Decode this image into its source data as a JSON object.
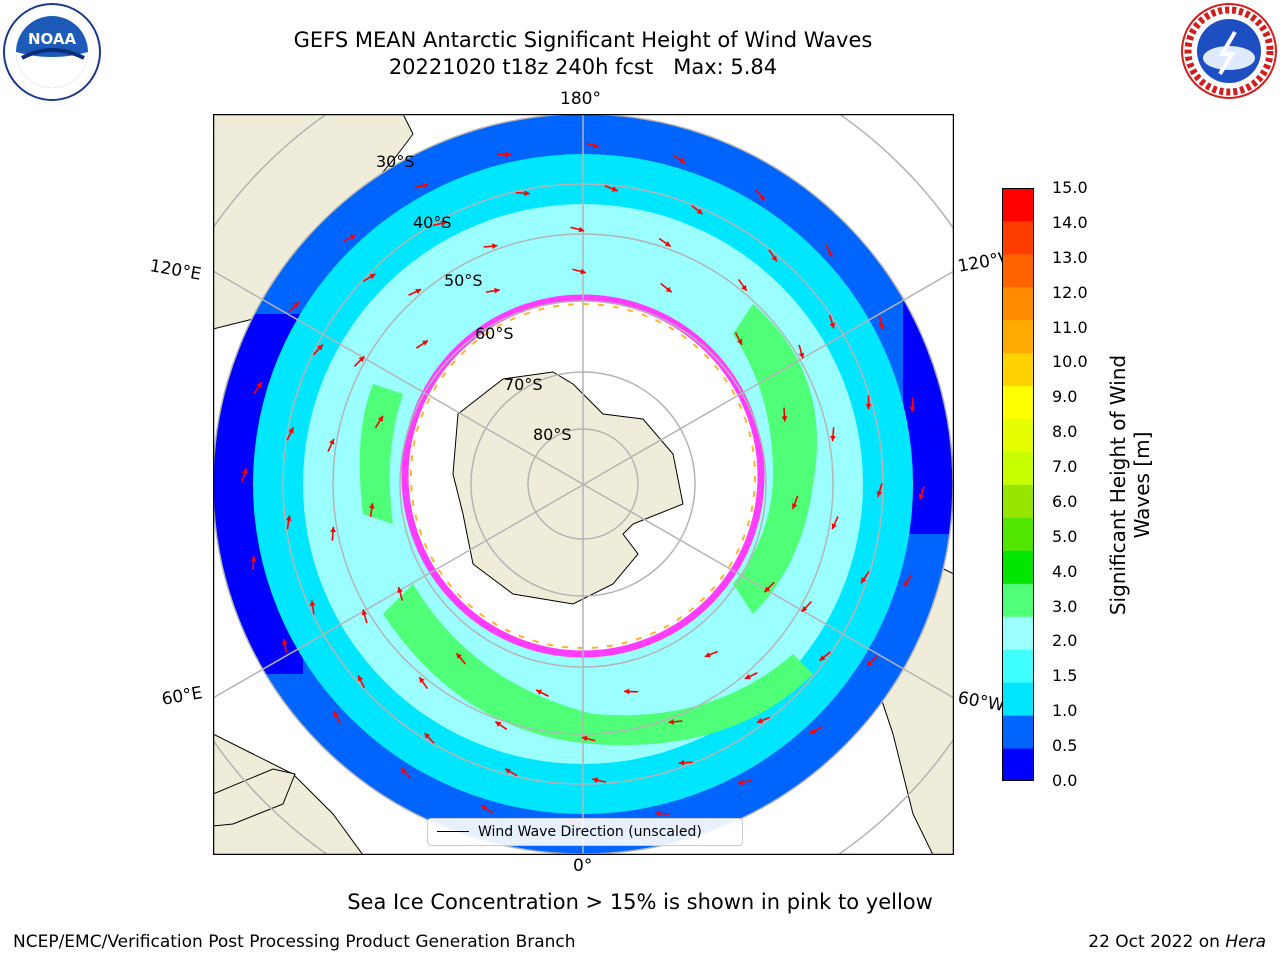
{
  "title": {
    "line1": "GEFS MEAN Antarctic Significant Height of Wind Waves",
    "line2": "20221020 t18z 240h fcst   Max: 5.84"
  },
  "map": {
    "projection": "south-polar-stereographic",
    "longitude_labels": {
      "top": "180°",
      "bottom": "0°",
      "upper_left": "120°E",
      "upper_right": "120°W",
      "lower_left": "60°E",
      "lower_right": "60°W"
    },
    "latitude_labels": [
      "30°S",
      "40°S",
      "50°S",
      "60°S",
      "70°S",
      "80°S"
    ],
    "land_color": "#efedda",
    "ocean_open_color": "#00ffff",
    "sea_ice_colors": [
      "#ff3cff",
      "#ffb42d"
    ],
    "arrow_color": "#ff0000",
    "legend_label": "Wind Wave Direction (unscaled)"
  },
  "colorbar": {
    "title": "Significant Height of Wind Waves [m]",
    "tick_labels": [
      "15.0",
      "14.0",
      "13.0",
      "12.0",
      "11.0",
      "10.0",
      "9.0",
      "8.0",
      "7.0",
      "6.0",
      "5.0",
      "4.0",
      "3.0",
      "2.0",
      "1.5",
      "1.0",
      "0.5",
      "0.0"
    ],
    "colors_bottom_to_top": [
      "#0000ff",
      "#0064ff",
      "#00e6ff",
      "#40ffff",
      "#9bffff",
      "#50ff78",
      "#00e600",
      "#50e600",
      "#96e600",
      "#c8ff00",
      "#e6ff00",
      "#ffff00",
      "#ffd200",
      "#ffaa00",
      "#ff8c00",
      "#ff6400",
      "#ff3c00",
      "#ff0000"
    ]
  },
  "note": "Sea Ice Concentration > 15% is shown in pink to yellow",
  "footer": {
    "credit_left": "NCEP/EMC/Verification Post Processing Product Generation Branch",
    "date": "22 Oct 2022 on ",
    "machine": "Hera"
  },
  "logos": {
    "noaa_text": "NOAA",
    "nws_text": "NATIONAL WEATHER SERVICE"
  }
}
